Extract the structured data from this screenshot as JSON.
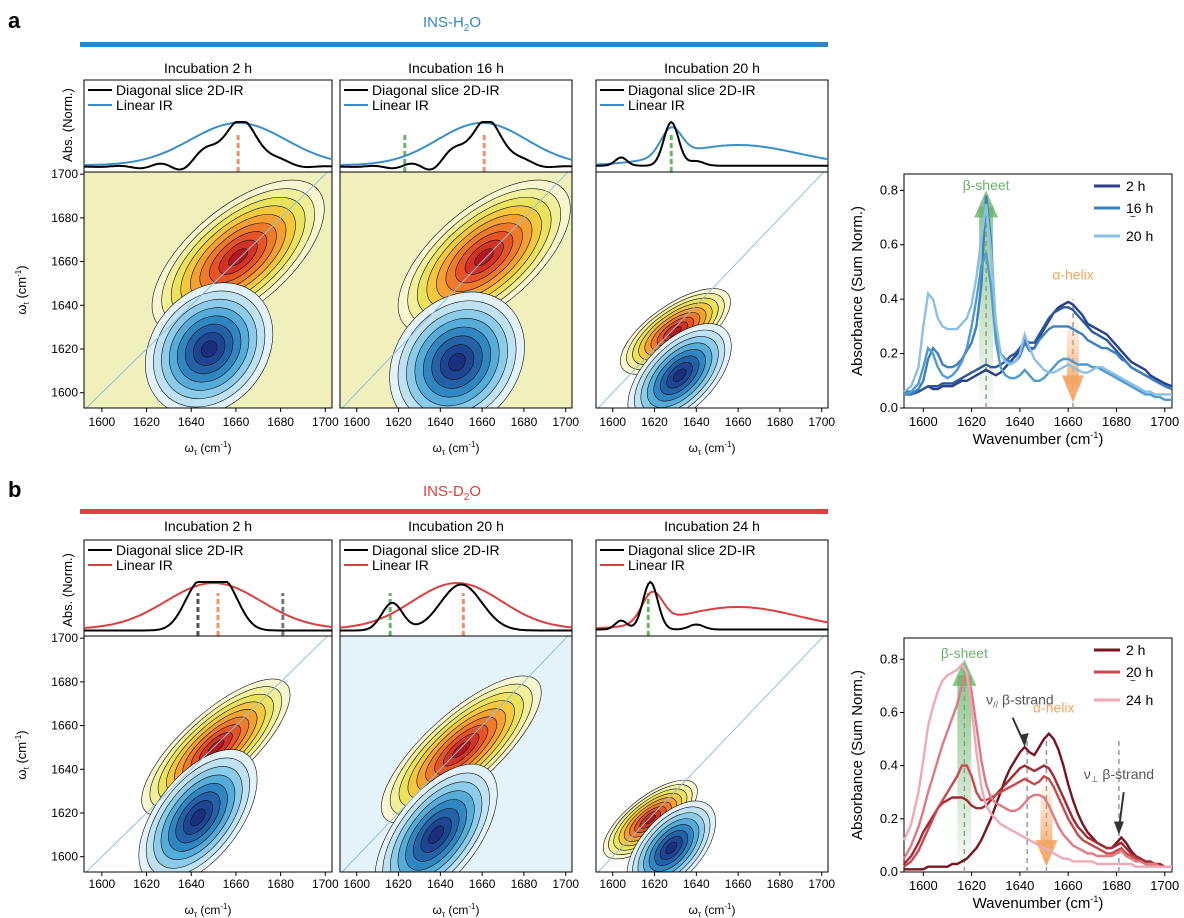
{
  "figure": {
    "panel_a": {
      "letter": "a",
      "header": "INS-H",
      "header_sub": "2",
      "header_tail": "O",
      "header_color": "#2f86c0",
      "subpanels": [
        {
          "title": "Incubation 2 h"
        },
        {
          "title": "Incubation 16 h"
        },
        {
          "title": "Incubation 20 h"
        }
      ]
    },
    "panel_b": {
      "letter": "b",
      "header": "INS-D",
      "header_sub": "2",
      "header_tail": "O",
      "header_color": "#d9403f",
      "subpanels": [
        {
          "title": "Incubation 2 h"
        },
        {
          "title": "Incubation 20 h"
        },
        {
          "title": "Incubation 24 h"
        }
      ]
    },
    "slice_legend": {
      "diagonal": "Diagonal slice 2D-IR",
      "linear": "Linear IR"
    },
    "slice_ylabel": "Abs. (Norm.)",
    "map_xlabel_main": "ω",
    "map_xlabel_sub": "τ",
    "map_xlabel_unit": " (cm",
    "map_ylabel_main": "ω",
    "map_ylabel_sub": "t",
    "map_ylabel_unit": " (cm",
    "unit_sup": "-1",
    "unit_close": ")",
    "map_ticks": [
      "1600",
      "1620",
      "1640",
      "1660",
      "1680",
      "1700"
    ],
    "map_yticks": [
      "1700",
      "1680",
      "1660",
      "1640",
      "1620",
      "1600"
    ],
    "tilde": "~"
  },
  "chart_data": [
    {
      "id": "a-spectra",
      "type": "line",
      "title": "",
      "xlabel": "Wavenumber (cm",
      "ylabel": "Absorbance (Sum Norm.)",
      "xlim": [
        1592,
        1703
      ],
      "ylim": [
        0,
        0.86
      ],
      "xticks": [
        1600,
        1620,
        1640,
        1660,
        1680,
        1700
      ],
      "yticks": [
        0.0,
        0.2,
        0.4,
        0.6,
        0.8
      ],
      "legend": {
        "position": "top-right",
        "entries": [
          "2 h",
          "16 h",
          "20 h"
        ]
      },
      "annotations": [
        {
          "text": "β-sheet",
          "color": "#6ab46a",
          "x": 1626
        },
        {
          "text": "α-helix",
          "color": "#f4a460",
          "x": 1662
        }
      ],
      "x": [
        1592,
        1595,
        1598,
        1600,
        1602,
        1604,
        1606,
        1608,
        1610,
        1612,
        1614,
        1616,
        1618,
        1620,
        1622,
        1624,
        1626,
        1628,
        1630,
        1632,
        1634,
        1636,
        1638,
        1640,
        1642,
        1644,
        1646,
        1648,
        1650,
        1652,
        1654,
        1656,
        1658,
        1660,
        1662,
        1664,
        1666,
        1668,
        1670,
        1672,
        1674,
        1676,
        1678,
        1680,
        1682,
        1684,
        1686,
        1688,
        1690,
        1692,
        1694,
        1696,
        1698,
        1700,
        1703
      ],
      "series": [
        {
          "name": "2 h",
          "color": "#2c3e8c",
          "values": [
            0.05,
            0.05,
            0.06,
            0.07,
            0.08,
            0.07,
            0.07,
            0.08,
            0.08,
            0.08,
            0.09,
            0.1,
            0.1,
            0.11,
            0.12,
            0.13,
            0.14,
            0.13,
            0.12,
            0.13,
            0.15,
            0.17,
            0.19,
            0.21,
            0.24,
            0.22,
            0.22,
            0.26,
            0.29,
            0.32,
            0.35,
            0.37,
            0.38,
            0.39,
            0.38,
            0.36,
            0.34,
            0.31,
            0.3,
            0.29,
            0.28,
            0.27,
            0.25,
            0.23,
            0.21,
            0.19,
            0.17,
            0.16,
            0.15,
            0.14,
            0.12,
            0.11,
            0.1,
            0.09,
            0.08
          ]
        },
        {
          "name": "",
          "color": "#2a5a9e",
          "values": [
            0.06,
            0.06,
            0.06,
            0.07,
            0.08,
            0.08,
            0.08,
            0.09,
            0.09,
            0.09,
            0.1,
            0.11,
            0.12,
            0.13,
            0.14,
            0.15,
            0.16,
            0.15,
            0.15,
            0.16,
            0.17,
            0.19,
            0.2,
            0.22,
            0.25,
            0.24,
            0.24,
            0.27,
            0.3,
            0.33,
            0.35,
            0.36,
            0.37,
            0.37,
            0.36,
            0.34,
            0.32,
            0.3,
            0.28,
            0.27,
            0.26,
            0.25,
            0.23,
            0.21,
            0.19,
            0.17,
            0.15,
            0.14,
            0.13,
            0.12,
            0.11,
            0.1,
            0.09,
            0.08,
            0.07
          ]
        },
        {
          "name": "16 h",
          "color": "#3c7fc0",
          "values": [
            0.05,
            0.05,
            0.07,
            0.1,
            0.18,
            0.22,
            0.2,
            0.16,
            0.15,
            0.15,
            0.16,
            0.18,
            0.21,
            0.24,
            0.3,
            0.45,
            0.78,
            0.62,
            0.3,
            0.2,
            0.18,
            0.17,
            0.17,
            0.19,
            0.24,
            0.21,
            0.22,
            0.25,
            0.27,
            0.29,
            0.3,
            0.3,
            0.3,
            0.3,
            0.29,
            0.28,
            0.27,
            0.25,
            0.24,
            0.23,
            0.22,
            0.22,
            0.21,
            0.2,
            0.18,
            0.17,
            0.15,
            0.14,
            0.13,
            0.12,
            0.11,
            0.1,
            0.09,
            0.08,
            0.07
          ]
        },
        {
          "name": "",
          "color": "#4f9bd1",
          "values": [
            0.05,
            0.06,
            0.09,
            0.15,
            0.22,
            0.2,
            0.15,
            0.12,
            0.11,
            0.12,
            0.14,
            0.17,
            0.22,
            0.3,
            0.4,
            0.52,
            0.57,
            0.45,
            0.25,
            0.15,
            0.12,
            0.11,
            0.11,
            0.12,
            0.14,
            0.12,
            0.1,
            0.1,
            0.11,
            0.13,
            0.15,
            0.17,
            0.18,
            0.18,
            0.17,
            0.16,
            0.16,
            0.16,
            0.15,
            0.15,
            0.14,
            0.13,
            0.12,
            0.11,
            0.1,
            0.09,
            0.08,
            0.07,
            0.06,
            0.05,
            0.05,
            0.04,
            0.04,
            0.03,
            0.03
          ]
        },
        {
          "name": "20 h",
          "color": "#8cc0e2",
          "values": [
            0.06,
            0.08,
            0.15,
            0.3,
            0.42,
            0.4,
            0.33,
            0.3,
            0.29,
            0.29,
            0.29,
            0.31,
            0.33,
            0.38,
            0.48,
            0.62,
            0.75,
            0.58,
            0.32,
            0.2,
            0.17,
            0.16,
            0.17,
            0.2,
            0.27,
            0.22,
            0.18,
            0.16,
            0.14,
            0.13,
            0.13,
            0.14,
            0.15,
            0.16,
            0.15,
            0.14,
            0.13,
            0.13,
            0.14,
            0.15,
            0.15,
            0.14,
            0.13,
            0.12,
            0.11,
            0.1,
            0.09,
            0.08,
            0.07,
            0.06,
            0.06,
            0.05,
            0.05,
            0.05,
            0.05
          ]
        }
      ]
    },
    {
      "id": "b-spectra",
      "type": "line",
      "title": "",
      "xlabel": "Wavenumber (cm",
      "ylabel": "Absorbance (Sum Norm.)",
      "xlim": [
        1592,
        1703
      ],
      "ylim": [
        0,
        0.88
      ],
      "xticks": [
        1600,
        1620,
        1640,
        1660,
        1680,
        1700
      ],
      "yticks": [
        0.0,
        0.2,
        0.4,
        0.6,
        0.8
      ],
      "legend": {
        "position": "top-right",
        "entries": [
          "2 h",
          "20 h",
          "24 h"
        ]
      },
      "annotations": [
        {
          "text": "β-sheet",
          "color": "#6ab46a",
          "x": 1617
        },
        {
          "text": "α-helix",
          "color": "#f4a460",
          "x": 1651
        },
        {
          "text": "ν",
          "sub": "//",
          "tail": " β-strand",
          "color": "#555",
          "x": 1643
        },
        {
          "text": "ν",
          "sub": "⊥",
          "tail": " β-strand",
          "color": "#555",
          "x": 1681
        }
      ],
      "x": [
        1592,
        1595,
        1598,
        1600,
        1602,
        1604,
        1606,
        1608,
        1610,
        1612,
        1614,
        1616,
        1618,
        1620,
        1622,
        1624,
        1626,
        1628,
        1630,
        1632,
        1634,
        1636,
        1638,
        1640,
        1642,
        1644,
        1646,
        1648,
        1650,
        1652,
        1654,
        1656,
        1658,
        1660,
        1662,
        1664,
        1666,
        1668,
        1670,
        1672,
        1674,
        1676,
        1678,
        1680,
        1682,
        1684,
        1686,
        1688,
        1690,
        1692,
        1694,
        1696,
        1698,
        1700,
        1703
      ],
      "series": [
        {
          "name": "2 h",
          "color": "#7a1420",
          "values": [
            0.01,
            0.01,
            0.01,
            0.01,
            0.02,
            0.02,
            0.02,
            0.02,
            0.02,
            0.03,
            0.03,
            0.04,
            0.05,
            0.07,
            0.09,
            0.12,
            0.16,
            0.2,
            0.25,
            0.3,
            0.35,
            0.39,
            0.42,
            0.45,
            0.47,
            0.45,
            0.44,
            0.47,
            0.5,
            0.52,
            0.5,
            0.46,
            0.4,
            0.33,
            0.27,
            0.22,
            0.18,
            0.15,
            0.13,
            0.11,
            0.1,
            0.09,
            0.09,
            0.11,
            0.13,
            0.11,
            0.08,
            0.06,
            0.05,
            0.04,
            0.03,
            0.03,
            0.02,
            0.02,
            0.02
          ]
        },
        {
          "name": "",
          "color": "#a12a34",
          "values": [
            0.03,
            0.06,
            0.11,
            0.15,
            0.18,
            0.21,
            0.24,
            0.26,
            0.27,
            0.28,
            0.28,
            0.28,
            0.27,
            0.25,
            0.24,
            0.24,
            0.25,
            0.27,
            0.29,
            0.31,
            0.33,
            0.35,
            0.37,
            0.39,
            0.4,
            0.39,
            0.38,
            0.39,
            0.4,
            0.39,
            0.36,
            0.32,
            0.28,
            0.24,
            0.2,
            0.17,
            0.15,
            0.13,
            0.12,
            0.11,
            0.1,
            0.09,
            0.09,
            0.1,
            0.11,
            0.09,
            0.07,
            0.06,
            0.05,
            0.04,
            0.04,
            0.03,
            0.03,
            0.02,
            0.02
          ]
        },
        {
          "name": "20 h",
          "color": "#c94a4c",
          "values": [
            0.02,
            0.04,
            0.08,
            0.12,
            0.16,
            0.2,
            0.24,
            0.27,
            0.3,
            0.33,
            0.36,
            0.4,
            0.4,
            0.36,
            0.3,
            0.27,
            0.27,
            0.28,
            0.29,
            0.3,
            0.31,
            0.32,
            0.33,
            0.34,
            0.35,
            0.34,
            0.33,
            0.34,
            0.36,
            0.35,
            0.32,
            0.28,
            0.24,
            0.2,
            0.17,
            0.14,
            0.12,
            0.11,
            0.1,
            0.09,
            0.08,
            0.07,
            0.07,
            0.08,
            0.09,
            0.07,
            0.06,
            0.05,
            0.04,
            0.03,
            0.03,
            0.03,
            0.02,
            0.02,
            0.02
          ]
        },
        {
          "name": "",
          "color": "#dd7a82",
          "values": [
            0.05,
            0.1,
            0.17,
            0.23,
            0.3,
            0.36,
            0.42,
            0.48,
            0.53,
            0.58,
            0.63,
            0.7,
            0.75,
            0.68,
            0.55,
            0.42,
            0.33,
            0.28,
            0.26,
            0.25,
            0.24,
            0.23,
            0.23,
            0.24,
            0.26,
            0.28,
            0.29,
            0.29,
            0.28,
            0.25,
            0.21,
            0.17,
            0.14,
            0.12,
            0.1,
            0.09,
            0.08,
            0.07,
            0.07,
            0.06,
            0.06,
            0.06,
            0.06,
            0.07,
            0.08,
            0.06,
            0.05,
            0.04,
            0.04,
            0.03,
            0.03,
            0.03,
            0.02,
            0.02,
            0.02
          ]
        },
        {
          "name": "24 h",
          "color": "#eeaab4",
          "values": [
            0.12,
            0.18,
            0.3,
            0.42,
            0.55,
            0.62,
            0.68,
            0.72,
            0.74,
            0.75,
            0.76,
            0.78,
            0.75,
            0.62,
            0.45,
            0.32,
            0.25,
            0.22,
            0.2,
            0.18,
            0.17,
            0.16,
            0.15,
            0.14,
            0.13,
            0.12,
            0.11,
            0.1,
            0.09,
            0.08,
            0.07,
            0.06,
            0.05,
            0.05,
            0.04,
            0.04,
            0.04,
            0.04,
            0.04,
            0.03,
            0.03,
            0.03,
            0.03,
            0.03,
            0.03,
            0.03,
            0.03,
            0.02,
            0.02,
            0.02,
            0.02,
            0.02,
            0.02,
            0.02,
            0.02
          ]
        }
      ]
    }
  ]
}
